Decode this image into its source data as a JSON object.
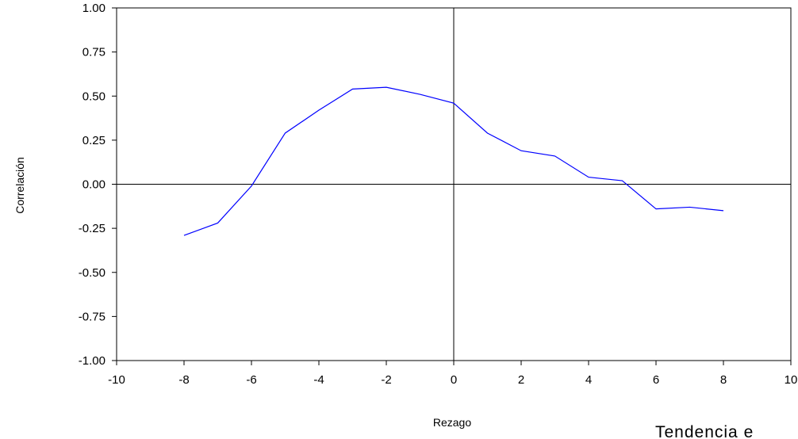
{
  "chart_data": {
    "type": "line",
    "xlabel": "Rezago",
    "ylabel": "Correlación",
    "xlim": [
      -10,
      10
    ],
    "ylim": [
      -1.0,
      1.0
    ],
    "x_ticks": [
      -10,
      -8,
      -6,
      -4,
      -2,
      0,
      2,
      4,
      6,
      8,
      10
    ],
    "x_tick_labels": [
      "-10",
      "-8",
      "-6",
      "-4",
      "-2",
      "0",
      "2",
      "4",
      "6",
      "8",
      "10"
    ],
    "y_ticks": [
      1.0,
      0.75,
      0.5,
      0.25,
      0.0,
      -0.25,
      -0.5,
      -0.75,
      -1.0
    ],
    "y_tick_labels": [
      "1.00",
      "0.75",
      "0.50",
      "0.25",
      "0.00",
      "-0.25",
      "-0.50",
      "-0.75",
      "-1.00"
    ],
    "reference_lines": {
      "x": 0,
      "y": 0
    },
    "series": [
      {
        "color": "#0000ff",
        "x": [
          -8,
          -7,
          -6,
          -5,
          -4,
          -3,
          -2,
          -1,
          0,
          1,
          2,
          3,
          4,
          5,
          6,
          7,
          8
        ],
        "y": [
          -0.29,
          -0.22,
          -0.01,
          0.29,
          0.42,
          0.54,
          0.55,
          0.51,
          0.46,
          0.29,
          0.19,
          0.16,
          0.04,
          0.02,
          -0.14,
          -0.13,
          -0.15
        ]
      }
    ],
    "grid": false,
    "legend": "none",
    "caption": "Tendencia e"
  }
}
